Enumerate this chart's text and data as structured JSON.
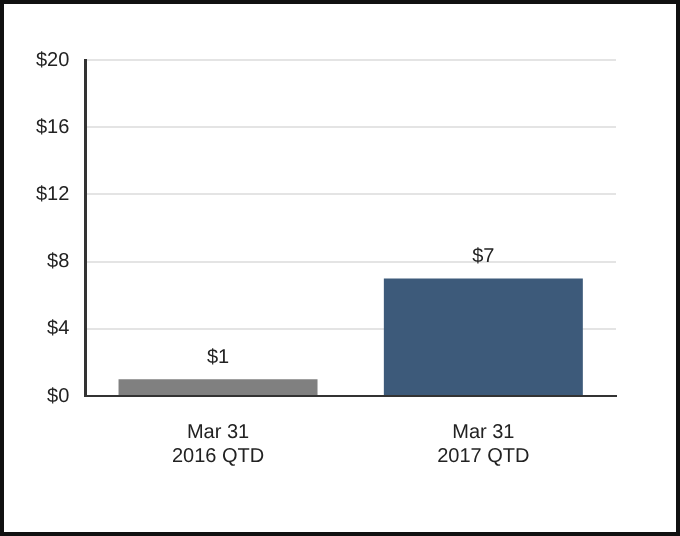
{
  "chart_data": {
    "type": "bar",
    "categories": [
      "Mar 31\n2016 QTD",
      "Mar 31\n2017 QTD"
    ],
    "values": [
      1,
      7
    ],
    "colors": [
      "#808080",
      "#3d5a7a"
    ],
    "value_labels": [
      "$1",
      "$7"
    ],
    "ylim": [
      0,
      20
    ],
    "yticks": [
      {
        "value": 0,
        "label": "$0"
      },
      {
        "value": 4,
        "label": "$4"
      },
      {
        "value": 8,
        "label": "$8"
      },
      {
        "value": 12,
        "label": "$12"
      },
      {
        "value": 16,
        "label": "$16"
      },
      {
        "value": 20,
        "label": "$20"
      }
    ],
    "grid": "y"
  }
}
